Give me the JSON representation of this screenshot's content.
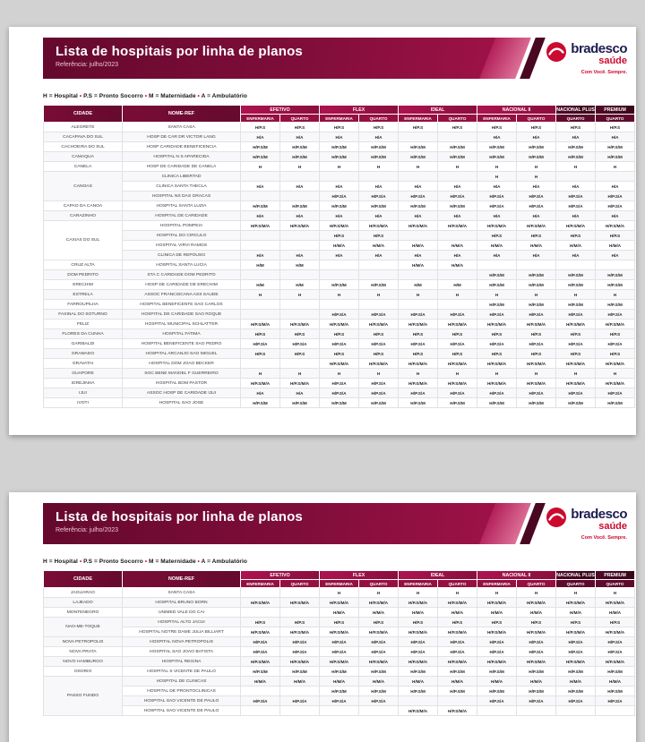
{
  "brand": {
    "name": "bradesco",
    "product": "saúde",
    "tagline": "Com Você. Sempre.",
    "colors": {
      "maroon": "#7e0d39",
      "crimson": "#a5124c",
      "red": "#cc092f",
      "navy": "#1d1c52",
      "page_bg": "#d2d2d2"
    }
  },
  "pages": [
    {
      "title": "Lista de hospitais por linha de planos",
      "subtitle": "Referência: julho/2023",
      "legend_items": [
        "H = Hospital",
        "P.S = Pronto Socorro",
        "M = Maternidade",
        "A = Ambulatório"
      ],
      "table": {
        "city_header": "CIDADE",
        "name_header": "NOME-REF",
        "groups": [
          {
            "label": "EFETIVO",
            "cols": [
              "ENFERMARIA",
              "QUARTO"
            ]
          },
          {
            "label": "FLEX",
            "cols": [
              "ENFERMARIA",
              "QUARTO"
            ]
          },
          {
            "label": "IDEAL",
            "cols": [
              "ENFERMARIA",
              "QUARTO"
            ]
          },
          {
            "label": "NACIONAL II",
            "cols": [
              "ENFERMARIA",
              "QUARTO"
            ]
          },
          {
            "label": "NACIONAL PLUS",
            "cols": [
              "QUARTO"
            ]
          },
          {
            "label": "PREMIUM",
            "cols": [
              "QUARTO"
            ]
          }
        ],
        "rows": [
          {
            "city": "ALEGRETE",
            "name": "SANTA CASA",
            "cells": [
              "H/P.S",
              "H/P.S",
              "H/P.S",
              "H/P.S",
              "H/P.S",
              "H/P.S",
              "H/P.S",
              "H/P.S",
              "H/P.S",
              "H/P.S"
            ]
          },
          {
            "city": "CACAPAVA DO SUL",
            "name": "HOSP DE CAR DR VICTOR LANG",
            "cells": [
              "H/A",
              "H/A",
              "H/A",
              "H/A",
              "",
              "",
              "H/A",
              "H/A",
              "H/A",
              "H/A"
            ]
          },
          {
            "city": "CACHOEIRA DO SUL",
            "name": "HOSP CARIDADE BENEFICENCIA",
            "cells": [
              "H/P.S/M",
              "H/P.S/M",
              "H/P.S/M",
              "H/P.S/M",
              "H/P.S/M",
              "H/P.S/M",
              "H/P.S/M",
              "H/P.S/M",
              "H/P.S/M",
              "H/P.S/M"
            ]
          },
          {
            "city": "CAMAQUA",
            "name": "HOSPITAL N S APARECIDA",
            "cells": [
              "H/P.S/M",
              "H/P.S/M",
              "H/P.S/M",
              "H/P.S/M",
              "H/P.S/M",
              "H/P.S/M",
              "H/P.S/M",
              "H/P.S/M",
              "H/P.S/M",
              "H/P.S/M"
            ]
          },
          {
            "city": "CANELA",
            "name": "HOSP DE CARIDADE DE CANELA",
            "cells": [
              "H",
              "H",
              "H",
              "H",
              "H",
              "H",
              "H",
              "H",
              "H",
              "H"
            ]
          },
          {
            "city": "CANOAS",
            "span": 3,
            "name": "CLINICA LIBERTAD",
            "cells": [
              "",
              "",
              "",
              "",
              "",
              "",
              "H",
              "H",
              "",
              ""
            ]
          },
          {
            "name": "CLINICA SANTA THECLA",
            "cells": [
              "H/A",
              "H/A",
              "H/A",
              "H/A",
              "H/A",
              "H/A",
              "H/A",
              "H/A",
              "H/A",
              "H/A"
            ]
          },
          {
            "name": "HOSPITAL NS DAS GRACAS",
            "cells": [
              "",
              "",
              "H/P.S/A",
              "H/P.S/A",
              "H/P.S/A",
              "H/P.S/A",
              "H/P.S/A",
              "H/P.S/A",
              "H/P.S/A",
              "H/P.S/A"
            ]
          },
          {
            "city": "CAPAO DA CANOA",
            "name": "HOSPITAL SANTA LUZIA",
            "cells": [
              "H/P.S/M",
              "H/P.S/M",
              "H/P.S/M",
              "H/P.S/M",
              "H/P.S/M",
              "H/P.S/M",
              "H/P.S/A",
              "H/P.S/A",
              "H/P.S/A",
              "H/P.S/A"
            ]
          },
          {
            "city": "CARAZINHO",
            "name": "HOSPITAL DE CARIDADE",
            "cells": [
              "H/A",
              "H/A",
              "H/A",
              "H/A",
              "H/A",
              "H/A",
              "H/A",
              "H/A",
              "H/A",
              "H/A"
            ]
          },
          {
            "city": "CAXIAS DO SUL",
            "span": 4,
            "name": "HOSPITAL POMPEIA",
            "cells": [
              "H/P.S/M/A",
              "H/P.S/M/A",
              "H/P.S/M/A",
              "H/P.S/M/A",
              "H/P.S/M/A",
              "H/P.S/M/A",
              "H/P.S/M/A",
              "H/P.S/M/A",
              "H/P.S/M/A",
              "H/P.S/M/A"
            ]
          },
          {
            "name": "HOSPITAL DO CIRCULO",
            "cells": [
              "",
              "",
              "H/P.S",
              "H/P.S",
              "",
              "",
              "H/P.S",
              "H/P.S",
              "H/P.S",
              "H/P.S"
            ]
          },
          {
            "name": "HOSPITAL VIRVI RAMOS",
            "cells": [
              "",
              "",
              "H/M/A",
              "H/M/A",
              "H/M/A",
              "H/M/A",
              "H/M/A",
              "H/M/A",
              "H/M/A",
              "H/M/A"
            ]
          },
          {
            "name": "CLINICA DE REPOUSO",
            "cells": [
              "H/A",
              "H/A",
              "H/A",
              "H/A",
              "H/A",
              "H/A",
              "H/A",
              "H/A",
              "H/A",
              "H/A"
            ]
          },
          {
            "city": "CRUZ ALTA",
            "name": "HOSPITAL SANTA LUCIA",
            "cells": [
              "H/M",
              "H/M",
              "",
              "",
              "H/M/A",
              "H/M/A",
              "",
              "",
              "",
              ""
            ]
          },
          {
            "city": "DOM PEDRITO",
            "name": "STA C CARIDADE DOM PEDRITO",
            "cells": [
              "",
              "",
              "",
              "",
              "",
              "",
              "H/P.S/M",
              "H/P.S/M",
              "H/P.S/M",
              "H/P.S/M"
            ]
          },
          {
            "city": "ERECHIM",
            "name": "HOSP DE CARIDADE DE ERECHIM",
            "cells": [
              "H/M",
              "H/M",
              "H/P.S/M",
              "H/P.S/M",
              "H/M",
              "H/M",
              "H/P.S/M",
              "H/P.S/M",
              "H/P.S/M",
              "H/P.S/M"
            ]
          },
          {
            "city": "ESTRELA",
            "name": "ASSOC FRANCISCANA ASS SAUDE",
            "cells": [
              "H",
              "H",
              "H",
              "H",
              "H",
              "H",
              "H",
              "H",
              "H",
              "H"
            ]
          },
          {
            "city": "FARROUPILHA",
            "name": "HOSPITAL BENEFICENTE SAO CARLOS",
            "cells": [
              "",
              "",
              "",
              "",
              "",
              "",
              "H/P.S/M",
              "H/P.S/M",
              "H/P.S/M",
              "H/P.S/M"
            ]
          },
          {
            "city": "FAXINAL DO SOTURNO",
            "name": "HOSPITAL DE CARIDADE SAO ROQUE",
            "cells": [
              "",
              "",
              "H/P.S/A",
              "H/P.S/A",
              "H/P.S/A",
              "H/P.S/A",
              "H/P.S/A",
              "H/P.S/A",
              "H/P.S/A",
              "H/P.S/A"
            ]
          },
          {
            "city": "FELIZ",
            "name": "HOSPITAL MUNICIPAL SCHLATTER",
            "cells": [
              "H/P.S/M/A",
              "H/P.S/M/A",
              "H/P.S/M/A",
              "H/P.S/M/A",
              "H/P.S/M/A",
              "H/P.S/M/A",
              "H/P.S/M/A",
              "H/P.S/M/A",
              "H/P.S/M/A",
              "H/P.S/M/A"
            ]
          },
          {
            "city": "FLORES DA CUNHA",
            "name": "HOSPITAL FATIMA",
            "cells": [
              "H/P.S",
              "H/P.S",
              "H/P.S",
              "H/P.S",
              "H/P.S",
              "H/P.S",
              "H/P.S",
              "H/P.S",
              "H/P.S",
              "H/P.S"
            ]
          },
          {
            "city": "GARIBALDI",
            "name": "HOSPITAL BENEFICENTE SAO PEDRO",
            "cells": [
              "H/P.S/A",
              "H/P.S/A",
              "H/P.S/A",
              "H/P.S/A",
              "H/P.S/A",
              "H/P.S/A",
              "H/P.S/A",
              "H/P.S/A",
              "H/P.S/A",
              "H/P.S/A"
            ]
          },
          {
            "city": "GRAMADO",
            "name": "HOSPITAL ARCANJO SAO MIGUEL",
            "cells": [
              "H/P.S",
              "H/P.S",
              "H/P.S",
              "H/P.S",
              "H/P.S",
              "H/P.S",
              "H/P.S",
              "H/P.S",
              "H/P.S",
              "H/P.S"
            ]
          },
          {
            "city": "GRAVATAI",
            "name": "HOSPITAL DOM JOAO BECKER",
            "cells": [
              "",
              "",
              "H/P.S/M/A",
              "H/P.S/M/A",
              "H/P.S/M/A",
              "H/P.S/M/A",
              "H/P.S/M/A",
              "H/P.S/M/A",
              "H/P.S/M/A",
              "H/P.S/M/A"
            ]
          },
          {
            "city": "GUAPORE",
            "name": "SOC BENE MANOEL F GUERREIRO",
            "cells": [
              "H",
              "H",
              "H",
              "H",
              "H",
              "H",
              "H",
              "H",
              "H",
              "H"
            ]
          },
          {
            "city": "IGREJINHA",
            "name": "HOSPITAL BOM PASTOR",
            "cells": [
              "H/P.S/M/A",
              "H/P.S/M/A",
              "H/P.S/A",
              "H/P.S/A",
              "H/P.S/M/A",
              "H/P.S/M/A",
              "H/P.S/M/A",
              "H/P.S/M/A",
              "H/P.S/M/A",
              "H/P.S/M/A"
            ]
          },
          {
            "city": "IJUI",
            "name": "ASSOC HOSP DE CARIDADE IJUI",
            "cells": [
              "H/A",
              "H/A",
              "H/P.S/A",
              "H/P.S/A",
              "H/P.S/A",
              "H/P.S/A",
              "H/P.S/A",
              "H/P.S/A",
              "H/P.S/A",
              "H/P.S/A"
            ]
          },
          {
            "city": "IVOTI",
            "name": "HOSPITAL SAO JOSE",
            "cells": [
              "H/P.S/M",
              "H/P.S/M",
              "H/P.S/M",
              "H/P.S/M",
              "H/P.S/M",
              "H/P.S/M",
              "H/P.S/M",
              "H/P.S/M",
              "H/P.S/M",
              "H/P.S/M"
            ]
          }
        ]
      }
    },
    {
      "title": "Lista de hospitais por linha de planos",
      "subtitle": "Referência: julho/2023",
      "legend_items": [
        "H = Hospital",
        "P.S = Pronto Socorro",
        "M = Maternidade",
        "A = Ambulatório"
      ],
      "table": {
        "city_header": "CIDADE",
        "name_header": "NOME-REF",
        "groups": [
          {
            "label": "EFETIVO",
            "cols": [
              "ENFERMARIA",
              "QUARTO"
            ]
          },
          {
            "label": "FLEX",
            "cols": [
              "ENFERMARIA",
              "QUARTO"
            ]
          },
          {
            "label": "IDEAL",
            "cols": [
              "ENFERMARIA",
              "QUARTO"
            ]
          },
          {
            "label": "NACIONAL II",
            "cols": [
              "ENFERMARIA",
              "QUARTO"
            ]
          },
          {
            "label": "NACIONAL PLUS",
            "cols": [
              "QUARTO"
            ]
          },
          {
            "label": "PREMIUM",
            "cols": [
              "QUARTO"
            ]
          }
        ],
        "rows": [
          {
            "city": "JAGUARAO",
            "name": "SANTA CASA",
            "cells": [
              "",
              "",
              "H",
              "H",
              "H",
              "H",
              "H",
              "H",
              "H",
              "H"
            ]
          },
          {
            "city": "LAJEADO",
            "name": "HOSPITAL BRUNO BORN",
            "cells": [
              "H/P.S/M/A",
              "H/P.S/M/A",
              "H/P.S/M/A",
              "H/P.S/M/A",
              "H/P.S/M/A",
              "H/P.S/M/A",
              "H/P.S/M/A",
              "H/P.S/M/A",
              "H/P.S/M/A",
              "H/P.S/M/A"
            ]
          },
          {
            "city": "MONTENEGRO",
            "name": "UNIMED VALE DO CAI",
            "cells": [
              "",
              "",
              "H/M/A",
              "H/M/A",
              "H/M/A",
              "H/M/A",
              "H/M/A",
              "H/M/A",
              "H/M/A",
              "H/M/A"
            ]
          },
          {
            "city": "NAO-ME-TOQUE",
            "span": 2,
            "name": "HOSPITAL ALTO JACUI",
            "cells": [
              "H/P.S",
              "H/P.S",
              "H/P.S",
              "H/P.S",
              "H/P.S",
              "H/P.S",
              "H/P.S",
              "H/P.S",
              "H/P.S",
              "H/P.S"
            ]
          },
          {
            "name": "HOSPITAL NOTRE DAME JULIA BILLIART",
            "cells": [
              "H/P.S/M/A",
              "H/P.S/M/A",
              "H/P.S/M/A",
              "H/P.S/M/A",
              "H/P.S/M/A",
              "H/P.S/M/A",
              "H/P.S/M/A",
              "H/P.S/M/A",
              "H/P.S/M/A",
              "H/P.S/M/A"
            ]
          },
          {
            "city": "NOVA PETROPOLIS",
            "name": "HOSPITAL NOVA PETROPOLIS",
            "cells": [
              "H/P.S/A",
              "H/P.S/A",
              "H/P.S/A",
              "H/P.S/A",
              "H/P.S/A",
              "H/P.S/A",
              "H/P.S/A",
              "H/P.S/A",
              "H/P.S/A",
              "H/P.S/A"
            ]
          },
          {
            "city": "NOVA PRATA",
            "name": "HOSPITAL SAO JOAO BATISTA",
            "cells": [
              "H/P.S/A",
              "H/P.S/A",
              "H/P.S/A",
              "H/P.S/A",
              "H/P.S/A",
              "H/P.S/A",
              "H/P.S/A",
              "H/P.S/A",
              "H/P.S/A",
              "H/P.S/A"
            ]
          },
          {
            "city": "NOVO HAMBURGO",
            "name": "HOSPITAL REGINA",
            "cells": [
              "H/P.S/M/A",
              "H/P.S/M/A",
              "H/P.S/M/A",
              "H/P.S/M/A",
              "H/P.S/M/A",
              "H/P.S/M/A",
              "H/P.S/M/A",
              "H/P.S/M/A",
              "H/P.S/M/A",
              "H/P.S/M/A"
            ]
          },
          {
            "city": "OSORIO",
            "name": "HOSPITAL S VICENTE DE PAULO",
            "cells": [
              "H/P.S/M",
              "H/P.S/M",
              "H/P.S/M",
              "H/P.S/M",
              "H/P.S/M",
              "H/P.S/M",
              "H/P.S/M",
              "H/P.S/M",
              "H/P.S/M",
              "H/P.S/M"
            ]
          },
          {
            "city": "PASSO FUNDO",
            "span": 4,
            "name": "HOSPITAL DE CLINICAS",
            "cells": [
              "H/M/A",
              "H/M/A",
              "H/M/A",
              "H/M/A",
              "H/M/A",
              "H/M/A",
              "H/M/A",
              "H/M/A",
              "H/M/A",
              "H/M/A"
            ]
          },
          {
            "name": "HOSPITAL DE PRONTOCLINICAS",
            "cells": [
              "",
              "",
              "H/P.S/M",
              "H/P.S/M",
              "H/P.S/M",
              "H/P.S/M",
              "H/P.S/M",
              "H/P.S/M",
              "H/P.S/M",
              "H/P.S/M"
            ]
          },
          {
            "name": "HOSPITAL SAO VICENTE DE PAULO",
            "cells": [
              "H/P.S/A",
              "H/P.S/A",
              "H/P.S/A",
              "H/P.S/A",
              "",
              "",
              "H/P.S/A",
              "H/P.S/A",
              "H/P.S/A",
              "H/P.S/A"
            ]
          },
          {
            "name": "HOSPITAL SAO VICENTE DE PAULO",
            "cells": [
              "",
              "",
              "",
              "",
              "H/P.S/M/A",
              "H/P.S/M/A",
              "",
              "",
              "",
              ""
            ]
          }
        ]
      }
    }
  ]
}
